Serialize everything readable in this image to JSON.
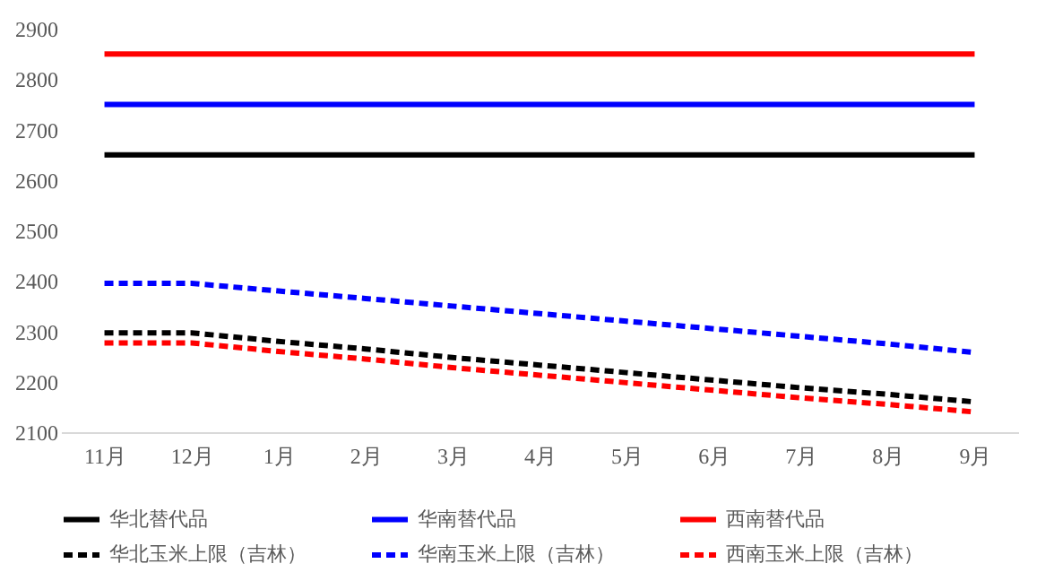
{
  "chart_data": {
    "type": "line",
    "categories": [
      "11月",
      "12月",
      "1月",
      "2月",
      "3月",
      "4月",
      "5月",
      "6月",
      "7月",
      "8月",
      "9月"
    ],
    "ylim": [
      2100,
      2900
    ],
    "yticks": [
      2100,
      2200,
      2300,
      2400,
      2500,
      2600,
      2700,
      2800,
      2900
    ],
    "grid": false,
    "legend": "bottom",
    "marker": "none",
    "series": [
      {
        "name": "华北替代品",
        "color": "#000000",
        "line_style": "solid",
        "values": [
          2650,
          2650,
          2650,
          2650,
          2650,
          2650,
          2650,
          2650,
          2650,
          2650,
          2650
        ]
      },
      {
        "name": "华南替代品",
        "color": "#0000ff",
        "line_style": "solid",
        "values": [
          2750,
          2750,
          2750,
          2750,
          2750,
          2750,
          2750,
          2750,
          2750,
          2750,
          2750
        ]
      },
      {
        "name": "西南替代品",
        "color": "#ff0000",
        "line_style": "solid",
        "values": [
          2850,
          2850,
          2850,
          2850,
          2850,
          2850,
          2850,
          2850,
          2850,
          2850,
          2850
        ]
      },
      {
        "name": "华北玉米上限（吉林）",
        "color": "#000000",
        "line_style": "dashed",
        "values": [
          2297,
          2297,
          2280,
          2265,
          2248,
          2233,
          2218,
          2203,
          2188,
          2175,
          2160
        ]
      },
      {
        "name": "华南玉米上限（吉林）",
        "color": "#0000ff",
        "line_style": "dashed",
        "values": [
          2395,
          2395,
          2380,
          2365,
          2350,
          2335,
          2320,
          2305,
          2290,
          2275,
          2258
        ]
      },
      {
        "name": "西南玉米上限（吉林）",
        "color": "#ff0000",
        "line_style": "dashed",
        "values": [
          2277,
          2277,
          2260,
          2245,
          2228,
          2213,
          2198,
          2183,
          2168,
          2155,
          2140
        ]
      }
    ]
  }
}
